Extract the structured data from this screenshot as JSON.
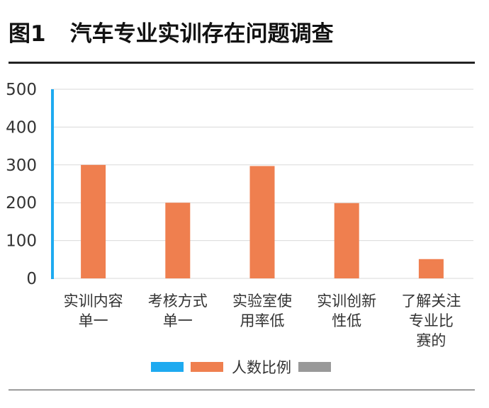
{
  "figure": {
    "number": "图1",
    "title": "汽车专业实训存在问题调查"
  },
  "colors": {
    "bar": "#ef7f4f",
    "axis_line": "#1eaaf0",
    "legend_blue": "#1eaaf0",
    "legend_gray": "#999999",
    "grid": "#d9d9d9"
  },
  "legend": {
    "label": "人数比例"
  },
  "chart_data": {
    "type": "bar",
    "title": "汽车专业实训存在问题调查",
    "categories": [
      [
        "实训内容",
        "单一"
      ],
      [
        "考核方式",
        "单一"
      ],
      [
        "实验室使",
        "用率低"
      ],
      [
        "实训创新",
        "性低"
      ],
      [
        "了解关注",
        "专业比",
        "赛的"
      ]
    ],
    "series": [
      {
        "name": "人数比例",
        "values": [
          300,
          200,
          297,
          199,
          51
        ]
      }
    ],
    "yticks": [
      0,
      100,
      200,
      300,
      400,
      500
    ],
    "ylim": [
      0,
      500
    ],
    "grid": true,
    "legend_position": "bottom"
  }
}
